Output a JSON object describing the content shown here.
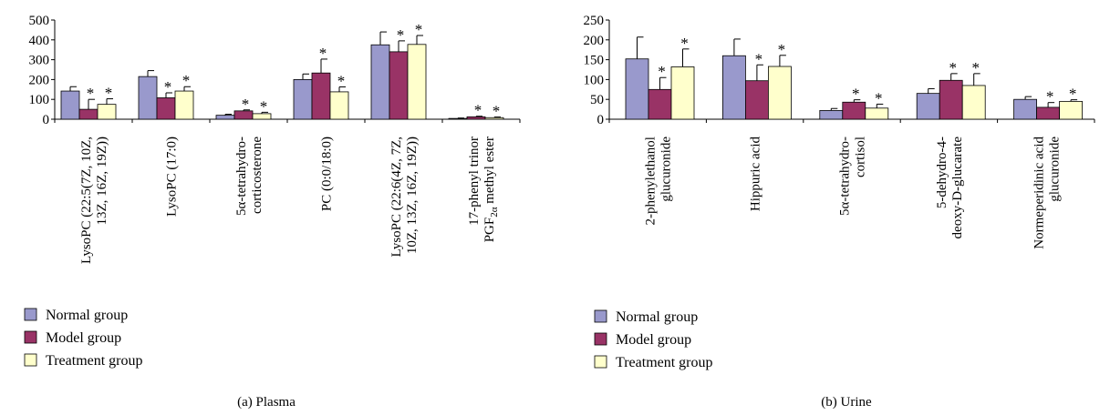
{
  "colors": {
    "normal": "#9999cc",
    "model": "#993366",
    "treatment": "#ffffcc"
  },
  "legend": [
    "Normal group",
    "Model group",
    "Treatment group"
  ],
  "panels": [
    {
      "caption": "(a)  Plasma",
      "yticks": [
        "0",
        "100",
        "200",
        "300",
        "400",
        "500"
      ],
      "categories": [
        [
          "LysoPC (22:5(7Z, 10Z,",
          "13Z, 16Z, 19Z))"
        ],
        [
          "LysoPC (17:0)"
        ],
        [
          "5α-tetrahydro-",
          "corticosterone"
        ],
        [
          "PC (0:0/18:0)"
        ],
        [
          "LysoPC (22:6(4Z, 7Z,",
          "10Z, 13Z, 16Z, 19Z))"
        ],
        [
          "17-phenyl trinor",
          "PGF2α methyl ester"
        ]
      ],
      "asterisk": "*"
    },
    {
      "caption": "(b)  Urine",
      "yticks": [
        "0",
        "50",
        "100",
        "150",
        "200",
        "250"
      ],
      "categories": [
        [
          "2-phenylethanol",
          "glucuronide"
        ],
        [
          "Hippuric acid"
        ],
        [
          "5α-tetrahydro-",
          "cortisol"
        ],
        [
          "5-dehydro-4-",
          "deoxy-D-glucarate"
        ],
        [
          "Normeperidinic acid",
          "glucuronide"
        ]
      ],
      "asterisk": "*"
    }
  ],
  "chart_data": [
    {
      "type": "bar",
      "title": "(a)  Plasma",
      "ylim": [
        0,
        500
      ],
      "categories": [
        "LysoPC (22:5(7Z, 10Z, 13Z, 16Z, 19Z))",
        "LysoPC (17:0)",
        "5α-tetrahydro-corticosterone",
        "PC (0:0/18:0)",
        "LysoPC (22:6(4Z, 7Z, 10Z, 13Z, 16Z, 19Z))",
        "17-phenyl trinor PGF2α methyl ester"
      ],
      "series": [
        {
          "name": "Normal group",
          "values": [
            142,
            215,
            20,
            200,
            375,
            4
          ],
          "errors": [
            22,
            30,
            5,
            28,
            65,
            2
          ],
          "significant": [
            false,
            false,
            false,
            false,
            false,
            false
          ]
        },
        {
          "name": "Model group",
          "values": [
            50,
            108,
            42,
            233,
            340,
            12
          ],
          "errors": [
            50,
            25,
            5,
            70,
            55,
            3
          ],
          "significant": [
            true,
            true,
            true,
            true,
            true,
            true
          ]
        },
        {
          "name": "Treatment group",
          "values": [
            75,
            142,
            28,
            138,
            377,
            8
          ],
          "errors": [
            28,
            22,
            7,
            25,
            45,
            3
          ],
          "significant": [
            true,
            true,
            true,
            true,
            true,
            true
          ]
        }
      ],
      "legend_placement": "bottom-left"
    },
    {
      "type": "bar",
      "title": "(b)  Urine",
      "ylim": [
        0,
        250
      ],
      "categories": [
        "2-phenylethanol glucuronide",
        "Hippuric acid",
        "5α-tetrahydro-cortisol",
        "5-dehydro-4-deoxy-D-glucarate",
        "Normeperidinic acid glucuronide"
      ],
      "series": [
        {
          "name": "Normal group",
          "values": [
            152,
            160,
            22,
            65,
            50
          ],
          "errors": [
            55,
            42,
            5,
            12,
            7
          ],
          "significant": [
            false,
            false,
            false,
            false,
            false
          ]
        },
        {
          "name": "Model group",
          "values": [
            75,
            97,
            43,
            98,
            30
          ],
          "errors": [
            30,
            40,
            6,
            17,
            12
          ],
          "significant": [
            true,
            true,
            true,
            true,
            true
          ]
        },
        {
          "name": "Treatment group",
          "values": [
            132,
            133,
            28,
            85,
            45
          ],
          "errors": [
            45,
            28,
            10,
            30,
            4
          ],
          "significant": [
            true,
            true,
            true,
            true,
            true
          ]
        }
      ],
      "legend_placement": "bottom-left"
    }
  ]
}
